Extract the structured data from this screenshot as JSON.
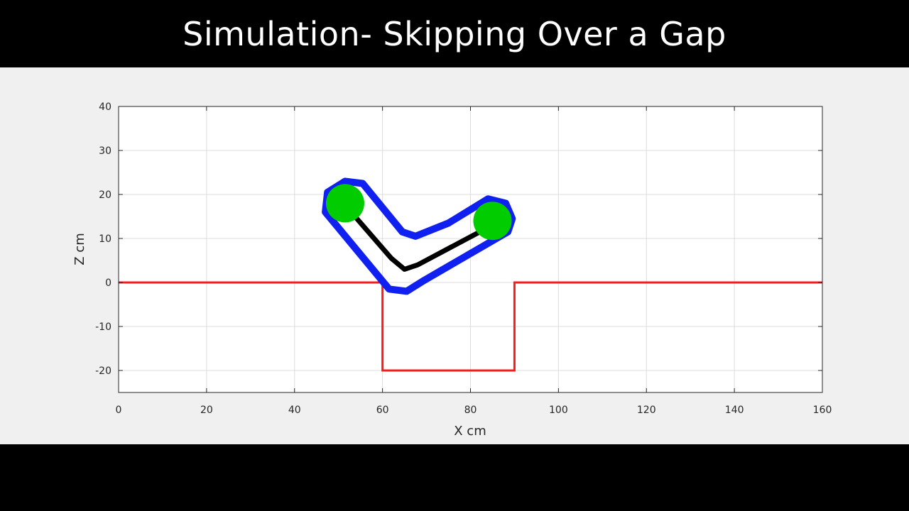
{
  "title": "Simulation- Skipping Over a Gap",
  "colors": {
    "background": "#000000",
    "figure_bg": "#f0f0f0",
    "terrain": "#ff1a1a",
    "robot_outline": "#1020f0",
    "robot_body": "#000000",
    "robot_feet": "#00cc00"
  },
  "chart_data": {
    "type": "line",
    "title": "",
    "xlabel": "X cm",
    "ylabel": "Z cm",
    "xlim": [
      0,
      160
    ],
    "ylim": [
      -25,
      40
    ],
    "xticks": [
      0,
      20,
      40,
      60,
      80,
      100,
      120,
      140,
      160
    ],
    "yticks": [
      -20,
      -10,
      0,
      10,
      20,
      30,
      40
    ],
    "xtick_labels": [
      "0",
      "20",
      "40",
      "60",
      "80",
      "100",
      "120",
      "140",
      "160"
    ],
    "ytick_labels": [
      "-20",
      "-10",
      "0",
      "10",
      "20",
      "30",
      "40"
    ],
    "grid": true,
    "series": [
      {
        "role": "terrain",
        "color": "#ff1a1a",
        "x": [
          0,
          60,
          60,
          90,
          90,
          160
        ],
        "y": [
          0,
          0,
          -20,
          -20,
          0,
          0
        ]
      },
      {
        "role": "robot-outline",
        "color": "#1020f0",
        "x": [
          47.5,
          51.5,
          55.5,
          64.5,
          67.5,
          75,
          84,
          88,
          89.5,
          88.5,
          69.5,
          65.5,
          61.5,
          47
        ],
        "y": [
          20.5,
          23,
          22.5,
          11.5,
          10.5,
          13.5,
          19,
          18,
          14.5,
          11.5,
          0.5,
          -2,
          -1.5,
          16
        ]
      },
      {
        "role": "robot-body",
        "color": "#000000",
        "x": [
          52,
          62,
          65,
          68,
          84
        ],
        "y": [
          17,
          5.5,
          3,
          4,
          12.5
        ]
      },
      {
        "role": "robot-foot",
        "color": "#00cc00",
        "type": "scatter",
        "x": [
          51.5,
          85
        ],
        "y": [
          18,
          14
        ]
      }
    ]
  }
}
